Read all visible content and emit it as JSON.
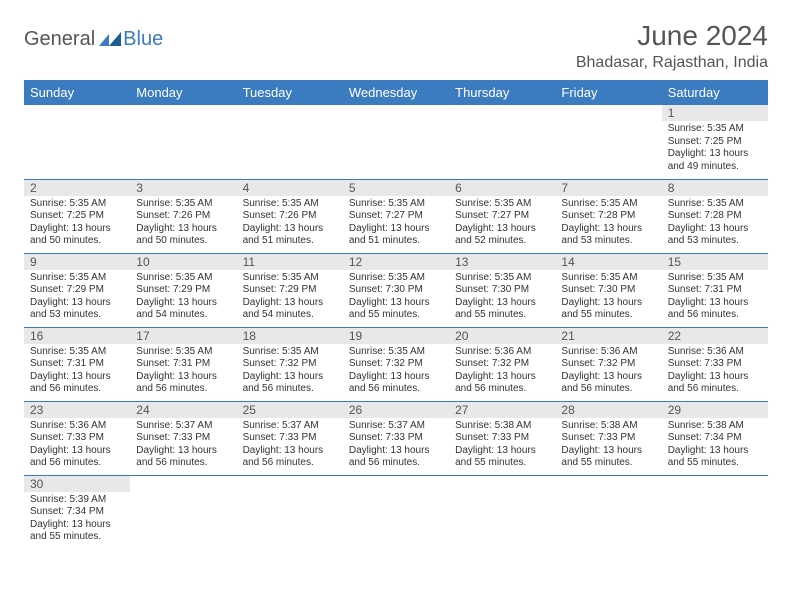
{
  "logo": {
    "main": "General",
    "accent": "Blue"
  },
  "title": "June 2024",
  "location": "Bhadasar, Rajasthan, India",
  "colors": {
    "header_bg": "#3b7bbf",
    "header_text": "#ffffff",
    "daynum_bg": "#e8e8e8",
    "text": "#555555",
    "cell_border": "#3b7bbf"
  },
  "weekdays": [
    "Sunday",
    "Monday",
    "Tuesday",
    "Wednesday",
    "Thursday",
    "Friday",
    "Saturday"
  ],
  "weeks": [
    [
      null,
      null,
      null,
      null,
      null,
      null,
      {
        "n": "1",
        "sr": "5:35 AM",
        "ss": "7:25 PM",
        "dl": "13 hours and 49 minutes."
      }
    ],
    [
      {
        "n": "2",
        "sr": "5:35 AM",
        "ss": "7:25 PM",
        "dl": "13 hours and 50 minutes."
      },
      {
        "n": "3",
        "sr": "5:35 AM",
        "ss": "7:26 PM",
        "dl": "13 hours and 50 minutes."
      },
      {
        "n": "4",
        "sr": "5:35 AM",
        "ss": "7:26 PM",
        "dl": "13 hours and 51 minutes."
      },
      {
        "n": "5",
        "sr": "5:35 AM",
        "ss": "7:27 PM",
        "dl": "13 hours and 51 minutes."
      },
      {
        "n": "6",
        "sr": "5:35 AM",
        "ss": "7:27 PM",
        "dl": "13 hours and 52 minutes."
      },
      {
        "n": "7",
        "sr": "5:35 AM",
        "ss": "7:28 PM",
        "dl": "13 hours and 53 minutes."
      },
      {
        "n": "8",
        "sr": "5:35 AM",
        "ss": "7:28 PM",
        "dl": "13 hours and 53 minutes."
      }
    ],
    [
      {
        "n": "9",
        "sr": "5:35 AM",
        "ss": "7:29 PM",
        "dl": "13 hours and 53 minutes."
      },
      {
        "n": "10",
        "sr": "5:35 AM",
        "ss": "7:29 PM",
        "dl": "13 hours and 54 minutes."
      },
      {
        "n": "11",
        "sr": "5:35 AM",
        "ss": "7:29 PM",
        "dl": "13 hours and 54 minutes."
      },
      {
        "n": "12",
        "sr": "5:35 AM",
        "ss": "7:30 PM",
        "dl": "13 hours and 55 minutes."
      },
      {
        "n": "13",
        "sr": "5:35 AM",
        "ss": "7:30 PM",
        "dl": "13 hours and 55 minutes."
      },
      {
        "n": "14",
        "sr": "5:35 AM",
        "ss": "7:30 PM",
        "dl": "13 hours and 55 minutes."
      },
      {
        "n": "15",
        "sr": "5:35 AM",
        "ss": "7:31 PM",
        "dl": "13 hours and 56 minutes."
      }
    ],
    [
      {
        "n": "16",
        "sr": "5:35 AM",
        "ss": "7:31 PM",
        "dl": "13 hours and 56 minutes."
      },
      {
        "n": "17",
        "sr": "5:35 AM",
        "ss": "7:31 PM",
        "dl": "13 hours and 56 minutes."
      },
      {
        "n": "18",
        "sr": "5:35 AM",
        "ss": "7:32 PM",
        "dl": "13 hours and 56 minutes."
      },
      {
        "n": "19",
        "sr": "5:35 AM",
        "ss": "7:32 PM",
        "dl": "13 hours and 56 minutes."
      },
      {
        "n": "20",
        "sr": "5:36 AM",
        "ss": "7:32 PM",
        "dl": "13 hours and 56 minutes."
      },
      {
        "n": "21",
        "sr": "5:36 AM",
        "ss": "7:32 PM",
        "dl": "13 hours and 56 minutes."
      },
      {
        "n": "22",
        "sr": "5:36 AM",
        "ss": "7:33 PM",
        "dl": "13 hours and 56 minutes."
      }
    ],
    [
      {
        "n": "23",
        "sr": "5:36 AM",
        "ss": "7:33 PM",
        "dl": "13 hours and 56 minutes."
      },
      {
        "n": "24",
        "sr": "5:37 AM",
        "ss": "7:33 PM",
        "dl": "13 hours and 56 minutes."
      },
      {
        "n": "25",
        "sr": "5:37 AM",
        "ss": "7:33 PM",
        "dl": "13 hours and 56 minutes."
      },
      {
        "n": "26",
        "sr": "5:37 AM",
        "ss": "7:33 PM",
        "dl": "13 hours and 56 minutes."
      },
      {
        "n": "27",
        "sr": "5:38 AM",
        "ss": "7:33 PM",
        "dl": "13 hours and 55 minutes."
      },
      {
        "n": "28",
        "sr": "5:38 AM",
        "ss": "7:33 PM",
        "dl": "13 hours and 55 minutes."
      },
      {
        "n": "29",
        "sr": "5:38 AM",
        "ss": "7:34 PM",
        "dl": "13 hours and 55 minutes."
      }
    ],
    [
      {
        "n": "30",
        "sr": "5:39 AM",
        "ss": "7:34 PM",
        "dl": "13 hours and 55 minutes."
      },
      null,
      null,
      null,
      null,
      null,
      null
    ]
  ],
  "labels": {
    "sunrise": "Sunrise:",
    "sunset": "Sunset:",
    "daylight": "Daylight:"
  }
}
